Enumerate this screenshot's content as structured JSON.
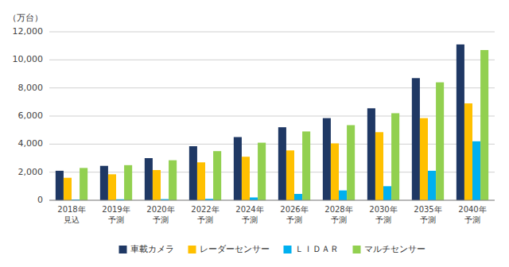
{
  "chart_data": {
    "type": "bar",
    "ylabel": "（万台）",
    "categories": [
      "2018年\n見込",
      "2019年\n予測",
      "2020年\n予測",
      "2022年\n予測",
      "2024年\n予測",
      "2026年\n予測",
      "2028年\n予測",
      "2030年\n予測",
      "2035年\n予測",
      "2040年\n予測"
    ],
    "series": [
      {
        "name": "車載カメラ",
        "color": "#1f3864",
        "values": [
          2100,
          2450,
          3000,
          3850,
          4500,
          5200,
          5850,
          6550,
          8700,
          11100
        ]
      },
      {
        "name": "レーダーセンサー",
        "color": "#ffc000",
        "values": [
          1600,
          1850,
          2150,
          2700,
          3100,
          3550,
          4050,
          4850,
          5850,
          6900
        ]
      },
      {
        "name": "ＬＩＤＡＲ",
        "color": "#00b0f0",
        "values": [
          50,
          70,
          80,
          100,
          200,
          450,
          700,
          1000,
          2100,
          4200
        ]
      },
      {
        "name": "マルチセンサー",
        "color": "#92d050",
        "values": [
          2300,
          2500,
          2850,
          3500,
          4100,
          4900,
          5350,
          6200,
          8400,
          10700
        ]
      }
    ],
    "ylim": [
      0,
      12000
    ],
    "yticks": [
      0,
      {
        "value": 2000,
        "label": "2,000"
      },
      {
        "value": 4000,
        "label": "4,000"
      },
      {
        "value": 6000,
        "label": "6,000"
      },
      {
        "value": 8000,
        "label": "8,000"
      },
      {
        "value": 10000,
        "label": "10,000"
      },
      {
        "value": 12000,
        "label": "12,000"
      }
    ],
    "grid": true,
    "legend": "bottom"
  }
}
